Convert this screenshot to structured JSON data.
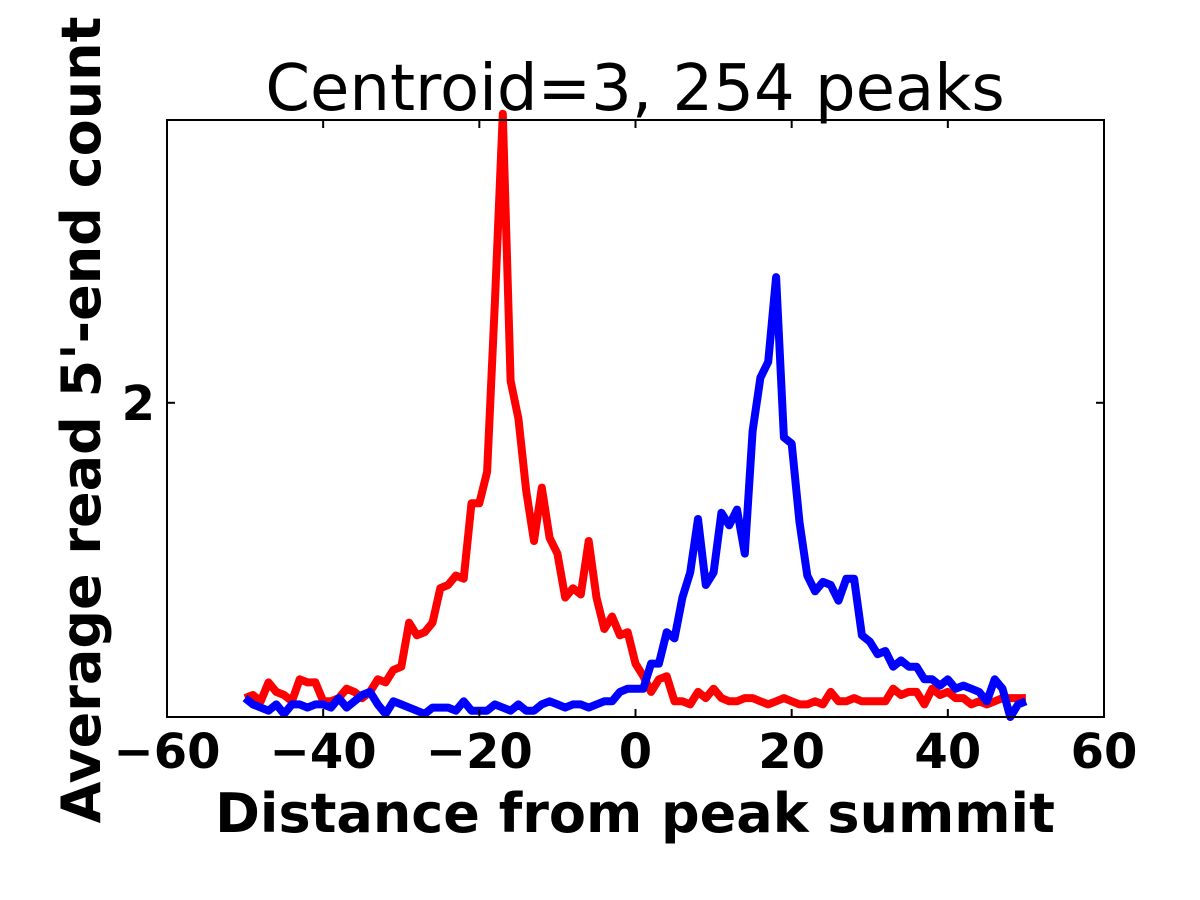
{
  "chart_data": {
    "type": "line",
    "title": "Centroid=3, 254 peaks",
    "xlabel": "Distance from peak summit",
    "ylabel": "Average read 5'-end count",
    "xlim": [
      -60,
      60
    ],
    "ylim": [
      1.0,
      2.9
    ],
    "xticks": [
      "−60",
      "−40",
      "−20",
      "0",
      "20",
      "40",
      "60"
    ],
    "xtick_values": [
      -60,
      -40,
      -20,
      0,
      20,
      40,
      60
    ],
    "yticks": [
      "2"
    ],
    "ytick_values": [
      2
    ],
    "grid": false,
    "x": [
      -50,
      -49,
      -48,
      -47,
      -46,
      -45,
      -44,
      -43,
      -42,
      -41,
      -40,
      -39,
      -38,
      -37,
      -36,
      -35,
      -34,
      -33,
      -32,
      -31,
      -30,
      -29,
      -28,
      -27,
      -26,
      -25,
      -24,
      -23,
      -22,
      -21,
      -20,
      -19,
      -18,
      -17,
      -16,
      -15,
      -14,
      -13,
      -12,
      -11,
      -10,
      -9,
      -8,
      -7,
      -6,
      -5,
      -4,
      -3,
      -2,
      -1,
      0,
      1,
      2,
      3,
      4,
      5,
      6,
      7,
      8,
      9,
      10,
      11,
      12,
      13,
      14,
      15,
      16,
      17,
      18,
      19,
      20,
      21,
      22,
      23,
      24,
      25,
      26,
      27,
      28,
      29,
      30,
      31,
      32,
      33,
      34,
      35,
      36,
      37,
      38,
      39,
      40,
      41,
      42,
      43,
      44,
      45,
      46,
      47,
      48,
      49,
      50
    ],
    "series": [
      {
        "color": "#ff0000",
        "values": [
          1.06,
          1.07,
          1.05,
          1.11,
          1.08,
          1.07,
          1.05,
          1.12,
          1.11,
          1.11,
          1.05,
          1.05,
          1.06,
          1.09,
          1.08,
          1.06,
          1.08,
          1.12,
          1.11,
          1.15,
          1.16,
          1.3,
          1.26,
          1.27,
          1.3,
          1.41,
          1.42,
          1.45,
          1.44,
          1.68,
          1.68,
          1.78,
          2.32,
          2.92,
          2.07,
          1.95,
          1.72,
          1.56,
          1.73,
          1.57,
          1.52,
          1.38,
          1.41,
          1.39,
          1.56,
          1.38,
          1.28,
          1.32,
          1.26,
          1.27,
          1.17,
          1.13,
          1.08,
          1.12,
          1.13,
          1.05,
          1.05,
          1.04,
          1.08,
          1.06,
          1.09,
          1.06,
          1.05,
          1.05,
          1.06,
          1.06,
          1.05,
          1.04,
          1.05,
          1.06,
          1.05,
          1.04,
          1.04,
          1.05,
          1.04,
          1.08,
          1.05,
          1.05,
          1.06,
          1.05,
          1.05,
          1.05,
          1.05,
          1.09,
          1.07,
          1.08,
          1.08,
          1.04,
          1.09,
          1.07,
          1.08,
          1.06,
          1.06,
          1.04,
          1.05,
          1.04,
          1.05,
          1.06,
          1.06,
          1.06,
          1.06
        ]
      },
      {
        "color": "#0000ff",
        "values": [
          1.06,
          1.04,
          1.03,
          1.02,
          1.04,
          1.01,
          1.04,
          1.04,
          1.03,
          1.04,
          1.04,
          1.03,
          1.06,
          1.03,
          1.05,
          1.07,
          1.08,
          1.04,
          1.01,
          1.05,
          1.04,
          1.03,
          1.02,
          1.01,
          1.03,
          1.03,
          1.03,
          1.02,
          1.05,
          1.02,
          1.02,
          1.02,
          1.04,
          1.03,
          1.02,
          1.04,
          1.02,
          1.02,
          1.04,
          1.05,
          1.04,
          1.03,
          1.04,
          1.04,
          1.03,
          1.04,
          1.05,
          1.05,
          1.08,
          1.09,
          1.09,
          1.09,
          1.17,
          1.17,
          1.27,
          1.25,
          1.38,
          1.46,
          1.63,
          1.42,
          1.46,
          1.65,
          1.61,
          1.66,
          1.52,
          1.91,
          2.08,
          2.13,
          2.4,
          1.89,
          1.87,
          1.62,
          1.45,
          1.4,
          1.43,
          1.42,
          1.37,
          1.44,
          1.44,
          1.26,
          1.24,
          1.2,
          1.21,
          1.16,
          1.18,
          1.16,
          1.16,
          1.12,
          1.12,
          1.1,
          1.12,
          1.09,
          1.1,
          1.09,
          1.08,
          1.05,
          1.12,
          1.09,
          1.0,
          1.04,
          1.05
        ]
      }
    ]
  }
}
